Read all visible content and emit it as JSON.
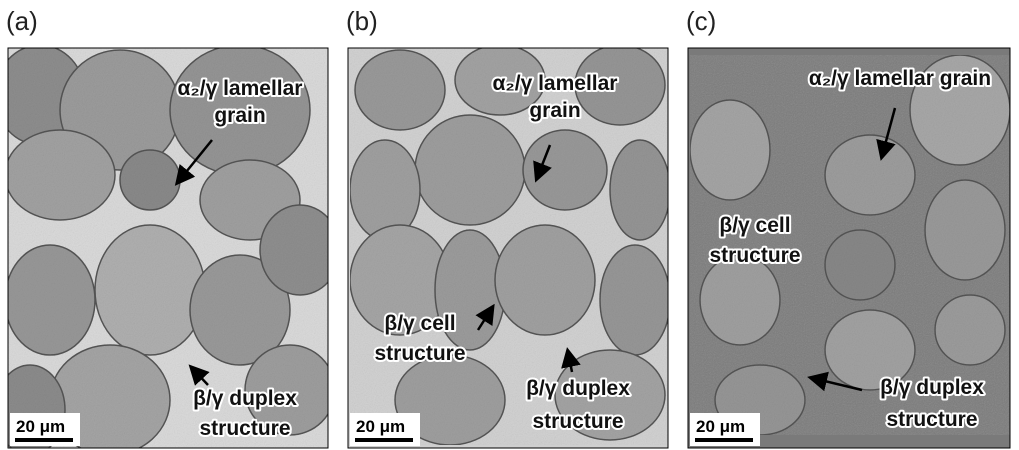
{
  "panels": [
    {
      "label": "(a)",
      "annotations": [
        [
          "α₂/γ lamellar",
          "grain"
        ],
        [
          "β/γ duplex",
          "structure"
        ]
      ],
      "scale_bar": "20 μm"
    },
    {
      "label": "(b)",
      "annotations": [
        [
          "α₂/γ lamellar",
          "grain"
        ],
        [
          "β/γ cell",
          "structure"
        ],
        [
          "β/γ duplex",
          "structure"
        ]
      ],
      "scale_bar": "20 μm"
    },
    {
      "label": "(c)",
      "annotations": [
        [
          "α₂/γ lamellar grain"
        ],
        [
          "β/γ cell",
          "structure"
        ],
        [
          "β/γ duplex",
          "structure"
        ]
      ],
      "scale_bar": "20 μm"
    }
  ]
}
